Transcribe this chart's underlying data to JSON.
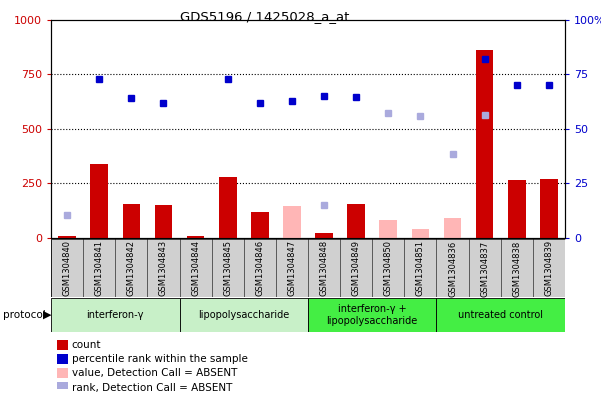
{
  "title": "GDS5196 / 1425028_a_at",
  "samples": [
    "GSM1304840",
    "GSM1304841",
    "GSM1304842",
    "GSM1304843",
    "GSM1304844",
    "GSM1304845",
    "GSM1304846",
    "GSM1304847",
    "GSM1304848",
    "GSM1304849",
    "GSM1304850",
    "GSM1304851",
    "GSM1304836",
    "GSM1304837",
    "GSM1304838",
    "GSM1304839"
  ],
  "count_values": [
    8,
    340,
    155,
    150,
    8,
    280,
    120,
    null,
    20,
    155,
    null,
    null,
    null,
    860,
    265,
    270
  ],
  "count_absent": [
    null,
    null,
    null,
    null,
    null,
    null,
    null,
    145,
    null,
    null,
    80,
    38,
    90,
    null,
    null,
    null
  ],
  "rank_values": [
    null,
    730,
    640,
    620,
    null,
    730,
    620,
    625,
    650,
    645,
    null,
    null,
    null,
    820,
    700,
    700
  ],
  "rank_absent": [
    105,
    null,
    null,
    null,
    null,
    null,
    null,
    null,
    150,
    null,
    570,
    560,
    385,
    565,
    null,
    null
  ],
  "protocol_groups": [
    {
      "label": "interferon-γ",
      "start": 0,
      "end": 3,
      "color": "#c8f0c8"
    },
    {
      "label": "lipopolysaccharide",
      "start": 4,
      "end": 7,
      "color": "#c8f0c8"
    },
    {
      "label": "interferon-γ +\nlipopolysaccharide",
      "start": 8,
      "end": 11,
      "color": "#44ee44"
    },
    {
      "label": "untreated control",
      "start": 12,
      "end": 15,
      "color": "#44ee44"
    }
  ],
  "ylim_left": [
    0,
    1000
  ],
  "ylim_right": [
    0,
    100
  ],
  "yticks_left": [
    0,
    250,
    500,
    750,
    1000
  ],
  "yticks_right": [
    0,
    25,
    50,
    75,
    100
  ],
  "count_color": "#cc0000",
  "count_absent_color": "#ffb6b6",
  "rank_color": "#0000cc",
  "rank_absent_color": "#aaaadd",
  "left_tick_color": "#cc0000",
  "right_tick_color": "#0000cc",
  "plot_bg": "#ffffff",
  "label_bg": "#d0d0d0",
  "legend_items": [
    {
      "color": "#cc0000",
      "label": "count"
    },
    {
      "color": "#0000cc",
      "label": "percentile rank within the sample"
    },
    {
      "color": "#ffb6b6",
      "label": "value, Detection Call = ABSENT"
    },
    {
      "color": "#aaaadd",
      "label": "rank, Detection Call = ABSENT"
    }
  ]
}
